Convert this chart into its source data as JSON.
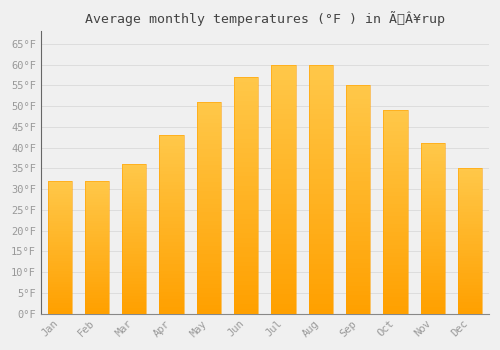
{
  "title": "Average monthly temperatures (°F ) in ÃÂ¥rup",
  "months": [
    "Jan",
    "Feb",
    "Mar",
    "Apr",
    "May",
    "Jun",
    "Jul",
    "Aug",
    "Sep",
    "Oct",
    "Nov",
    "Dec"
  ],
  "values": [
    32,
    32,
    36,
    43,
    51,
    57,
    60,
    60,
    55,
    49,
    41,
    35
  ],
  "bar_color_top": "#FFC84A",
  "bar_color_bottom": "#FFA000",
  "bar_width": 0.65,
  "ylim": [
    0,
    68
  ],
  "ytick_step": 5,
  "background_color": "#F0F0F0",
  "grid_color": "#DDDDDD",
  "title_fontsize": 9.5,
  "tick_fontsize": 7.5,
  "font_family": "monospace",
  "tick_color": "#999999",
  "title_color": "#444444"
}
